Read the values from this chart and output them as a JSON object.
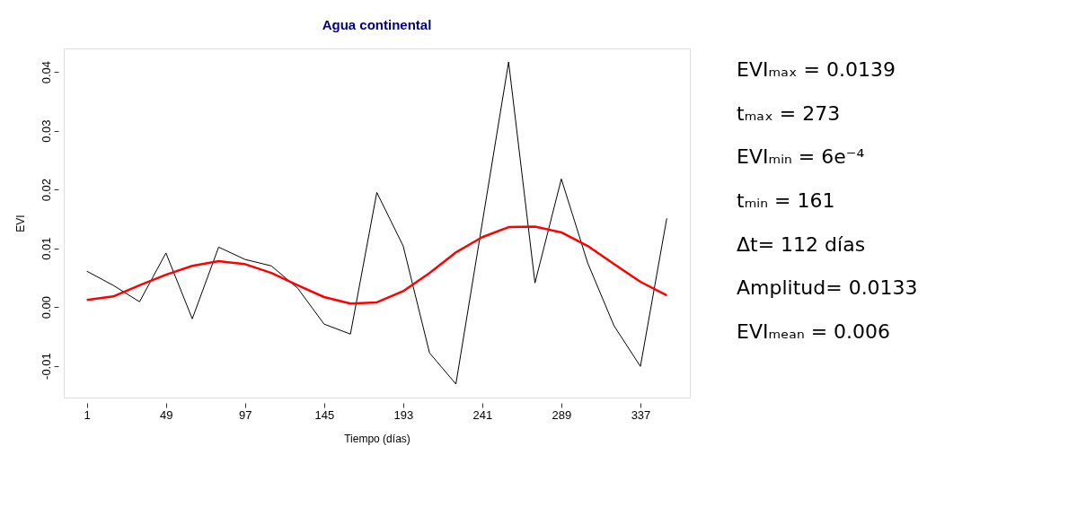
{
  "chart_data": [
    {
      "type": "line",
      "title": "Agua continental",
      "xlabel": "Tiempo (días)",
      "ylabel": "EVI",
      "series": [
        {
          "color": "#000000",
          "x": [
            1,
            17,
            33,
            49,
            65,
            81,
            97,
            113,
            129,
            145,
            161,
            177,
            193,
            209,
            225,
            257,
            273,
            289,
            305,
            321,
            337,
            353
          ],
          "values": [
            0.0061,
            0.0037,
            0.0009,
            0.0092,
            -0.002,
            0.0102,
            0.0081,
            0.007,
            0.0032,
            -0.0029,
            -0.0046,
            0.0195,
            0.0104,
            -0.0078,
            -0.0131,
            0.0417,
            0.0041,
            0.0218,
            0.0075,
            -0.0032,
            -0.0101,
            0.0151
          ]
        },
        {
          "color": "#ff0000",
          "x": [
            1,
            17,
            33,
            49,
            65,
            81,
            97,
            113,
            129,
            145,
            161,
            177,
            193,
            209,
            225,
            241,
            257,
            273,
            289,
            305,
            321,
            337,
            353
          ],
          "values": [
            0.0012,
            0.0018,
            0.0037,
            0.0055,
            0.007,
            0.0078,
            0.0073,
            0.0058,
            0.0037,
            0.0017,
            0.0006,
            0.0008,
            0.0027,
            0.0058,
            0.0093,
            0.0119,
            0.0136,
            0.0137,
            0.0127,
            0.0104,
            0.0073,
            0.0043,
            0.002
          ]
        }
      ],
      "xlim": [
        -13,
        367
      ],
      "ylim": [
        -0.0154,
        0.044
      ],
      "xticks": [
        1,
        49,
        97,
        145,
        193,
        241,
        289,
        337
      ],
      "yticks": [
        {
          "value": -0.01,
          "label": "-0.01"
        },
        {
          "value": 0,
          "label": "0.00"
        },
        {
          "value": 0.01,
          "label": "0.01"
        },
        {
          "value": 0.02,
          "label": "0.02"
        },
        {
          "value": 0.03,
          "label": "0.03"
        },
        {
          "value": 0.04,
          "label": "0.04"
        }
      ],
      "grid": false,
      "line_style": "solid",
      "marker": "none"
    },
    {
      "type": "other",
      "annotations": [
        "EVIₘₐₓ = 0.0139",
        "tₘₐₓ = 273",
        "EVIₘᵢₙ = 6e⁻⁴",
        "tₘᵢₙ = 161",
        "Δt= 112 días",
        "Amplitud= 0.0133",
        "EVIₘₑₐₙ = 0.006"
      ]
    }
  ]
}
